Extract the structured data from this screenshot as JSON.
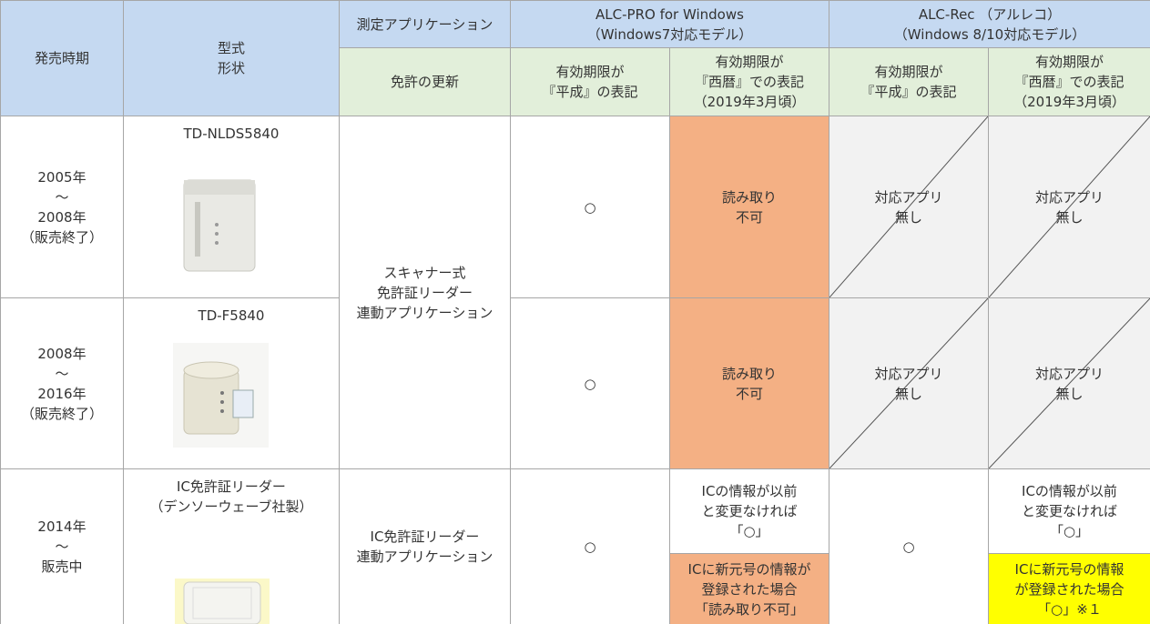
{
  "header": {
    "release_period": "発売時期",
    "model": "型式\n形状",
    "app_label": "測定アプリケーション",
    "license_renewal": "免許の更新",
    "alc_pro": "ALC-PRO for Windows\n（Windows7対応モデル）",
    "alc_rec": "ALC-Rec （アルレコ）\n（Windows 8/10対応モデル）",
    "sub": [
      "有効期限が\n『平成』の表記",
      "有効期限が\n『西暦』での表記\n（2019年3月頃）",
      "有効期限が\n『平成』の表記",
      "有効期限が\n『西暦』での表記\n（2019年3月頃）"
    ]
  },
  "rows": [
    {
      "period": "2005年\n～\n2008年\n（販売終了）",
      "model": "TD-NLDS5840",
      "app": "スキャナー式\n免許証リーダー\n連動アプリケーション",
      "cells": [
        "○",
        "読み取り\n不可",
        "対応アプリ\n無し",
        "対応アプリ\n無し"
      ]
    },
    {
      "period": "2008年\n～\n2016年\n（販売終了）",
      "model": "TD-F5840",
      "cells": [
        "○",
        "読み取り\n不可",
        "対応アプリ\n無し",
        "対応アプリ\n無し"
      ]
    },
    {
      "period": "2014年\n～\n販売中",
      "model": "IC免許証リーダー\n（デンソーウェーブ社製）",
      "app": "IC免許証リーダー\n連動アプリケーション",
      "cells": [
        "○",
        [
          "ICの情報が以前\nと変更なければ\n「○」",
          "ICに新元号の情報が\n登録された場合\n「読み取り不可」"
        ],
        "○",
        [
          "ICの情報が以前\nと変更なければ\n「○」",
          "ICに新元号の情報\nが登録された場合\n「○」※１"
        ]
      ]
    }
  ]
}
